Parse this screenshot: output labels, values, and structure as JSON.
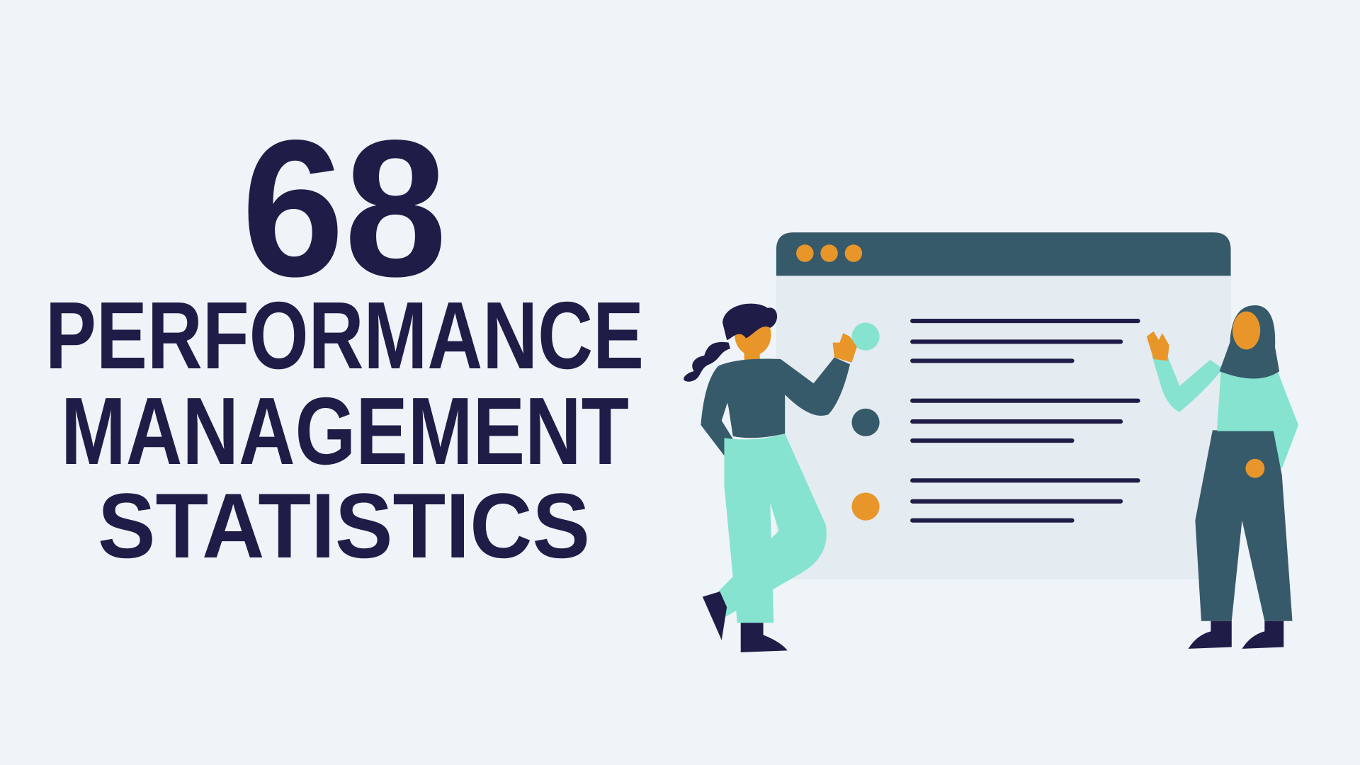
{
  "headline": {
    "number": "68",
    "line1": "PERFORMANCE",
    "line2": "MANAGEMENT",
    "line3": "STATISTICS"
  },
  "illustration": {
    "description_icons": [
      "browser-window-icon",
      "person-woman-icon",
      "person-woman-hijab-icon",
      "list-bullet-icon"
    ],
    "list_bullet_colors": [
      "#86e3cf",
      "#375a6a",
      "#e8962a"
    ]
  },
  "colors": {
    "background": "#eff4f8",
    "text": "#1f1d47",
    "window_header": "#375a6a",
    "window_body": "#e4ebf1",
    "accent_orange": "#e8962a",
    "accent_mint": "#86e3cf",
    "teal": "#375a6a",
    "navy": "#1f1d47"
  }
}
